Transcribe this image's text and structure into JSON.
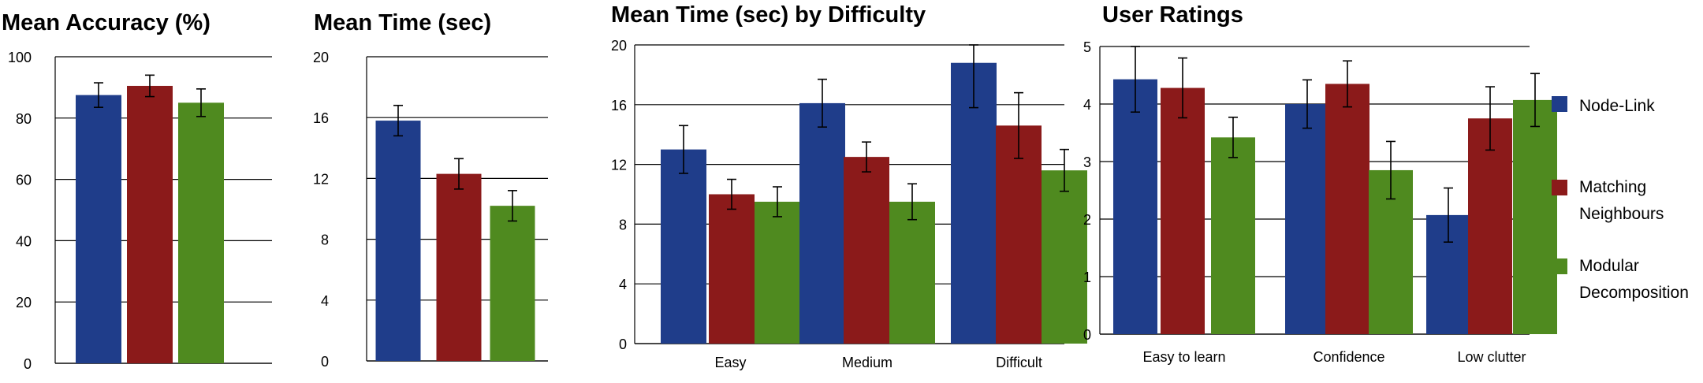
{
  "colors": {
    "node_link": "#1f3d8a",
    "matching_neighbours": "#8b1a1a",
    "modular_decomposition": "#4f8a1f"
  },
  "legend": {
    "items": [
      {
        "label": [
          "Node-Link"
        ],
        "color": "#1f3d8a"
      },
      {
        "label": [
          "Matching",
          "Neighbours"
        ],
        "color": "#8b1a1a"
      },
      {
        "label": [
          "Modular",
          "Decomposition"
        ],
        "color": "#4f8a1f"
      }
    ]
  },
  "chart_data": [
    {
      "type": "bar",
      "title": "Mean Accuracy (%)",
      "ylim": [
        0,
        100
      ],
      "yticks": [
        "0",
        "20",
        "40",
        "60",
        "80",
        "100"
      ],
      "categories": [
        ""
      ],
      "series": [
        {
          "name": "Node-Link",
          "values": [
            87.5
          ],
          "error": [
            4
          ]
        },
        {
          "name": "Matching Neighbours",
          "values": [
            90.5
          ],
          "error": [
            3.5
          ]
        },
        {
          "name": "Modular Decomposition",
          "values": [
            85
          ],
          "error": [
            4.5
          ]
        }
      ]
    },
    {
      "type": "bar",
      "title": "Mean Time (sec)",
      "ylim": [
        0,
        20
      ],
      "yticks": [
        "0",
        "4",
        "8",
        "12",
        "16",
        "20"
      ],
      "categories": [
        ""
      ],
      "series": [
        {
          "name": "Node-Link",
          "values": [
            15.8
          ],
          "error": [
            1
          ]
        },
        {
          "name": "Matching Neighbours",
          "values": [
            12.3
          ],
          "error": [
            1
          ]
        },
        {
          "name": "Modular Decomposition",
          "values": [
            10.2
          ],
          "error": [
            1
          ]
        }
      ]
    },
    {
      "type": "bar",
      "title": "Mean Time (sec) by Difficulty",
      "ylim": [
        0,
        20
      ],
      "yticks": [
        "0",
        "4",
        "8",
        "12",
        "16",
        "20"
      ],
      "categories": [
        "Easy",
        "Medium",
        "Difficult"
      ],
      "series": [
        {
          "name": "Node-Link",
          "values": [
            13,
            16.1,
            18.8
          ],
          "error": [
            1.6,
            1.6,
            3
          ]
        },
        {
          "name": "Matching Neighbours",
          "values": [
            10,
            12.5,
            14.6
          ],
          "error": [
            1,
            1,
            2.2
          ]
        },
        {
          "name": "Modular Decomposition",
          "values": [
            9.5,
            9.5,
            11.6
          ],
          "error": [
            1,
            1.2,
            1.4
          ]
        }
      ]
    },
    {
      "type": "bar",
      "title": "User Ratings",
      "ylim": [
        0,
        5
      ],
      "yticks": [
        "0",
        "1",
        "2",
        "3",
        "4",
        "5"
      ],
      "categories": [
        "Easy to learn",
        "Confidence",
        "Low clutter"
      ],
      "series": [
        {
          "name": "Node-Link",
          "values": [
            4.43,
            4.0,
            2.07
          ],
          "error": [
            0.57,
            0.42,
            0.47
          ]
        },
        {
          "name": "Matching Neighbours",
          "values": [
            4.28,
            4.35,
            3.75
          ],
          "error": [
            0.52,
            0.4,
            0.55
          ]
        },
        {
          "name": "Modular Decomposition",
          "values": [
            3.42,
            2.85,
            4.07
          ],
          "error": [
            0.35,
            0.5,
            0.46
          ]
        }
      ]
    }
  ]
}
